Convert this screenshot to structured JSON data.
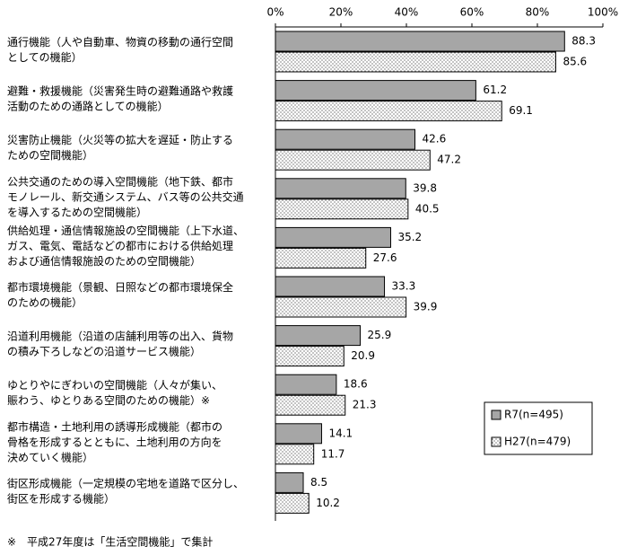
{
  "chart_data": {
    "type": "hbar",
    "categories": [
      [
        "通行機能（人や自動車、物資の移動の通行空間",
        "としての機能）"
      ],
      [
        "避難・救援機能（災害発生時の避難通路や救護",
        "活動のための通路としての機能）"
      ],
      [
        "災害防止機能（火災等の拡大を遅延・防止する",
        "ための空間機能）"
      ],
      [
        "公共交通のための導入空間機能（地下鉄、都市",
        "モノレール、新交通システム、バス等の公共交通",
        "を導入するための空間機能）"
      ],
      [
        "供給処理・通信情報施設の空間機能（上下水道、",
        "ガス、電気、電話などの都市における供給処理",
        "および通信情報施設のための空間機能）"
      ],
      [
        "都市環境機能（景観、日照などの都市環境保全",
        "のための機能）"
      ],
      [
        "沿道利用機能（沿道の店舗利用等の出入、貨物",
        "の積み下ろしなどの沿道サービス機能）"
      ],
      [
        "ゆとりやにぎわいの空間機能（人々が集い、",
        "賑わう、ゆとりある空間のための機能）※"
      ],
      [
        "都市構造・土地利用の誘導形成機能（都市の",
        "骨格を形成するとともに、土地利用の方向を",
        "決めていく機能）"
      ],
      [
        "街区形成機能（一定規模の宅地を道路で区分し、",
        "街区を形成する機能）"
      ]
    ],
    "series": [
      {
        "name": "R7(n=495)",
        "color": "#a6a6a6",
        "values": [
          88.3,
          61.2,
          42.6,
          39.8,
          35.2,
          33.3,
          25.9,
          18.6,
          14.1,
          8.5
        ]
      },
      {
        "name": "H27(n=479)",
        "color": "#ffffff",
        "pattern": "dots",
        "values": [
          85.6,
          69.1,
          47.2,
          40.5,
          27.6,
          39.9,
          20.9,
          21.3,
          11.7,
          10.2
        ]
      }
    ],
    "xlim": [
      0,
      100
    ],
    "xticks": [
      {
        "value": 0,
        "label": "0%"
      },
      {
        "value": 20,
        "label": "20%"
      },
      {
        "value": 40,
        "label": "40%"
      },
      {
        "value": 60,
        "label": "60%"
      },
      {
        "value": 80,
        "label": "80%"
      },
      {
        "value": 100,
        "label": "100%"
      }
    ],
    "legend": "lower right",
    "footnote": "※　平成27年度は「生活空間機能」で集計"
  }
}
